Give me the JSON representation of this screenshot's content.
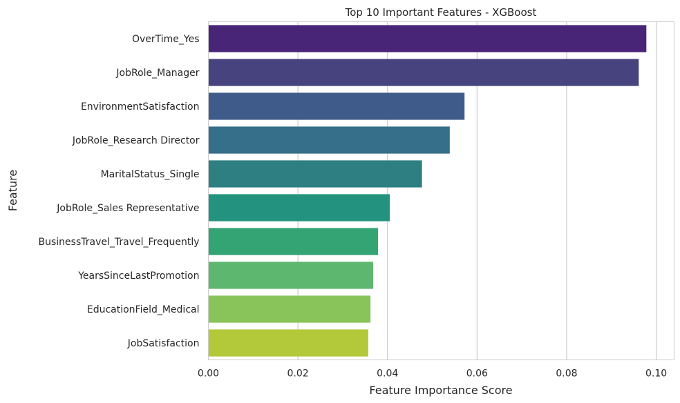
{
  "chart_data": {
    "type": "bar",
    "orientation": "horizontal",
    "title": "Top 10 Important Features - XGBoost",
    "xlabel": "Feature Importance Score",
    "ylabel": "Feature",
    "xlim": [
      0,
      0.104
    ],
    "xticks": [
      0.0,
      0.02,
      0.04,
      0.06,
      0.08,
      0.1
    ],
    "xtick_labels": [
      "0.00",
      "0.02",
      "0.04",
      "0.06",
      "0.08",
      "0.10"
    ],
    "grid": "vertical",
    "categories": [
      "OverTime_Yes",
      "JobRole_Manager",
      "EnvironmentSatisfaction",
      "JobRole_Research Director",
      "MaritalStatus_Single",
      "JobRole_Sales Representative",
      "BusinessTravel_Travel_Frequently",
      "YearsSinceLastPromotion",
      "EducationField_Medical",
      "JobSatisfaction"
    ],
    "values": [
      0.0978,
      0.0961,
      0.0572,
      0.0539,
      0.0477,
      0.0405,
      0.0379,
      0.0368,
      0.0362,
      0.0357
    ],
    "colors": [
      "#482576",
      "#46437e",
      "#3f5b89",
      "#356f89",
      "#2d7f81",
      "#23927f",
      "#34a474",
      "#5db76e",
      "#88c45a",
      "#b3c93a"
    ]
  }
}
